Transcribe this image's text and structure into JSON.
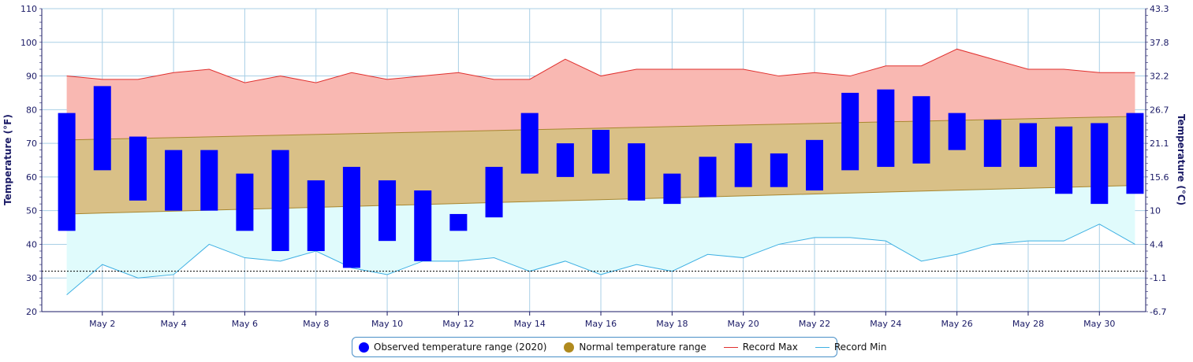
{
  "chart_data": {
    "type": "bar",
    "title": "",
    "ylabel": "Temperature (°F)",
    "y2label": "Temperature (°C)",
    "ylim": [
      20,
      110
    ],
    "yticks": [
      20,
      30,
      40,
      50,
      60,
      70,
      80,
      90,
      100,
      110
    ],
    "y2ticks": [
      "-6.7",
      "-1.1",
      "4.4",
      "10",
      "15.6",
      "21.1",
      "26.7",
      "32.2",
      "37.8",
      "43.3"
    ],
    "xlim": [
      0.3,
      31.3
    ],
    "xtick_days": [
      2,
      4,
      6,
      8,
      10,
      12,
      14,
      16,
      18,
      20,
      22,
      24,
      26,
      28,
      30
    ],
    "xtick_labels": [
      "May 2",
      "May 4",
      "May 6",
      "May 8",
      "May 10",
      "May 12",
      "May 14",
      "May 16",
      "May 18",
      "May 20",
      "May 22",
      "May 24",
      "May 26",
      "May 28",
      "May 30"
    ],
    "days": [
      1,
      2,
      3,
      4,
      5,
      6,
      7,
      8,
      9,
      10,
      11,
      12,
      13,
      14,
      15,
      16,
      17,
      18,
      19,
      20,
      21,
      22,
      23,
      24,
      25,
      26,
      27,
      28,
      29,
      30,
      31
    ],
    "observed_low": [
      44,
      62,
      53,
      50,
      50,
      44,
      38,
      38,
      33,
      41,
      35,
      44,
      48,
      61,
      60,
      61,
      53,
      52,
      54,
      57,
      57,
      56,
      62,
      63,
      64,
      68,
      63,
      63,
      55,
      52,
      55
    ],
    "observed_high": [
      79,
      87,
      72,
      68,
      68,
      61,
      68,
      59,
      63,
      59,
      56,
      49,
      63,
      79,
      70,
      74,
      70,
      61,
      66,
      70,
      67,
      71,
      85,
      86,
      84,
      79,
      77,
      76,
      75,
      76,
      79
    ],
    "normal_low_start": 49,
    "normal_low_end": 57.5,
    "normal_high_start": 71,
    "normal_high_end": 78,
    "record_max": [
      90,
      89,
      89,
      91,
      92,
      88,
      90,
      88,
      91,
      89,
      90,
      91,
      89,
      89,
      95,
      90,
      92,
      92,
      92,
      92,
      90,
      91,
      90,
      93,
      93,
      98,
      95,
      92,
      92,
      91,
      91
    ],
    "record_min": [
      25,
      34,
      30,
      31,
      40,
      36,
      35,
      38,
      33,
      31,
      35,
      35,
      36,
      32,
      35,
      31,
      34,
      32,
      37,
      36,
      40,
      42,
      42,
      41,
      35,
      37,
      40,
      41,
      41,
      46,
      40
    ],
    "freezing_line": 32,
    "grid": true,
    "legend_position": "bottom-center",
    "colors": {
      "observed": "#0000ff",
      "normal": "#d9c087",
      "normal_border": "#a8862e",
      "record_max_fill": "#f9b8b2",
      "record_max_line": "#e0302e",
      "record_min_fill": "#e0fbfc",
      "record_min_line": "#3fb0e3",
      "grid": "#a9cfe6",
      "axis": "#1a1a66"
    },
    "legend": [
      {
        "label": "Observed temperature range (2020)",
        "color": "#0000ff",
        "symbol": "dot"
      },
      {
        "label": "Normal temperature range",
        "color": "#b08a1e",
        "symbol": "dot"
      },
      {
        "label": "Record Max",
        "color": "#e0302e",
        "symbol": "line"
      },
      {
        "label": "Record Min",
        "color": "#3fb0e3",
        "symbol": "line"
      }
    ]
  }
}
